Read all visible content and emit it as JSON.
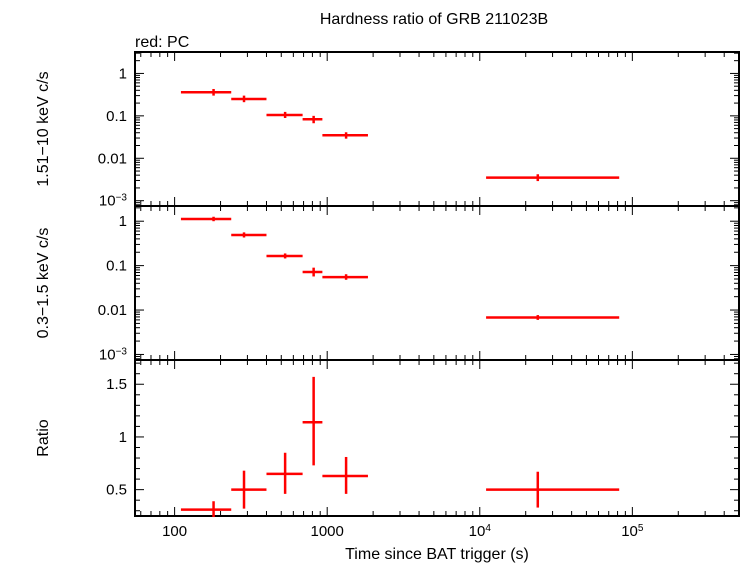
{
  "chart_data": {
    "type": "scatter",
    "title": "Hardness ratio of GRB 211023B",
    "subtitle": "red: PC",
    "xlabel": "Time since BAT trigger (s)",
    "x_scale": "log",
    "xlim": [
      55,
      500000
    ],
    "x_ticks": [
      {
        "value": 100,
        "label": "100"
      },
      {
        "value": 1000,
        "label": "1000"
      },
      {
        "value": 10000,
        "label": "10",
        "exp": "4"
      },
      {
        "value": 100000,
        "label": "10",
        "exp": "5"
      }
    ],
    "series_color": "#ff0000",
    "panels": [
      {
        "ylabel": "1.51−10 keV c/s",
        "y_scale": "log",
        "ylim": [
          0.00075,
          3.2
        ],
        "y_ticks": [
          {
            "value": 1,
            "label": "1"
          },
          {
            "value": 0.1,
            "label": "0.1"
          },
          {
            "value": 0.01,
            "label": "0.01"
          },
          {
            "value": 0.001,
            "label": "10",
            "exp": "−3"
          }
        ],
        "points": [
          {
            "x": 180,
            "xlo": 110,
            "xhi": 235,
            "y": 0.36,
            "ylo": 0.3,
            "yhi": 0.43
          },
          {
            "x": 285,
            "xlo": 235,
            "xhi": 400,
            "y": 0.25,
            "ylo": 0.21,
            "yhi": 0.3
          },
          {
            "x": 530,
            "xlo": 400,
            "xhi": 690,
            "y": 0.105,
            "ylo": 0.089,
            "yhi": 0.124
          },
          {
            "x": 815,
            "xlo": 690,
            "xhi": 930,
            "y": 0.083,
            "ylo": 0.067,
            "yhi": 0.1
          },
          {
            "x": 1330,
            "xlo": 930,
            "xhi": 1850,
            "y": 0.035,
            "ylo": 0.029,
            "yhi": 0.041
          },
          {
            "x": 24000,
            "xlo": 11000,
            "xhi": 82000,
            "y": 0.0035,
            "ylo": 0.0029,
            "yhi": 0.0042
          }
        ]
      },
      {
        "ylabel": "0.3−1.5 keV c/s",
        "y_scale": "log",
        "ylim": [
          0.00075,
          2.2
        ],
        "y_ticks": [
          {
            "value": 1,
            "label": "1"
          },
          {
            "value": 0.1,
            "label": "0.1"
          },
          {
            "value": 0.01,
            "label": "0.01"
          },
          {
            "value": 0.001,
            "label": "10",
            "exp": "−3"
          }
        ],
        "points": [
          {
            "x": 180,
            "xlo": 110,
            "xhi": 235,
            "y": 1.12,
            "ylo": 1.0,
            "yhi": 1.26
          },
          {
            "x": 285,
            "xlo": 235,
            "xhi": 400,
            "y": 0.49,
            "ylo": 0.43,
            "yhi": 0.56
          },
          {
            "x": 530,
            "xlo": 400,
            "xhi": 690,
            "y": 0.165,
            "ylo": 0.145,
            "yhi": 0.188
          },
          {
            "x": 815,
            "xlo": 690,
            "xhi": 930,
            "y": 0.072,
            "ylo": 0.057,
            "yhi": 0.09
          },
          {
            "x": 1330,
            "xlo": 930,
            "xhi": 1850,
            "y": 0.055,
            "ylo": 0.048,
            "yhi": 0.064
          },
          {
            "x": 24000,
            "xlo": 11000,
            "xhi": 82000,
            "y": 0.0068,
            "ylo": 0.006,
            "yhi": 0.0077
          }
        ]
      },
      {
        "ylabel": "Ratio",
        "y_scale": "linear",
        "ylim": [
          0.25,
          1.73
        ],
        "y_ticks": [
          {
            "value": 1.5,
            "label": "1.5"
          },
          {
            "value": 1,
            "label": "1"
          },
          {
            "value": 0.5,
            "label": "0.5"
          }
        ],
        "points": [
          {
            "x": 180,
            "xlo": 110,
            "xhi": 235,
            "y": 0.31,
            "ylo": 0.24,
            "yhi": 0.39
          },
          {
            "x": 285,
            "xlo": 235,
            "xhi": 400,
            "y": 0.5,
            "ylo": 0.32,
            "yhi": 0.68
          },
          {
            "x": 530,
            "xlo": 400,
            "xhi": 690,
            "y": 0.65,
            "ylo": 0.46,
            "yhi": 0.85
          },
          {
            "x": 815,
            "xlo": 690,
            "xhi": 930,
            "y": 1.14,
            "ylo": 0.73,
            "yhi": 1.57
          },
          {
            "x": 1330,
            "xlo": 930,
            "xhi": 1850,
            "y": 0.63,
            "ylo": 0.46,
            "yhi": 0.81
          },
          {
            "x": 24000,
            "xlo": 11000,
            "xhi": 82000,
            "y": 0.5,
            "ylo": 0.33,
            "yhi": 0.67
          }
        ]
      }
    ]
  }
}
